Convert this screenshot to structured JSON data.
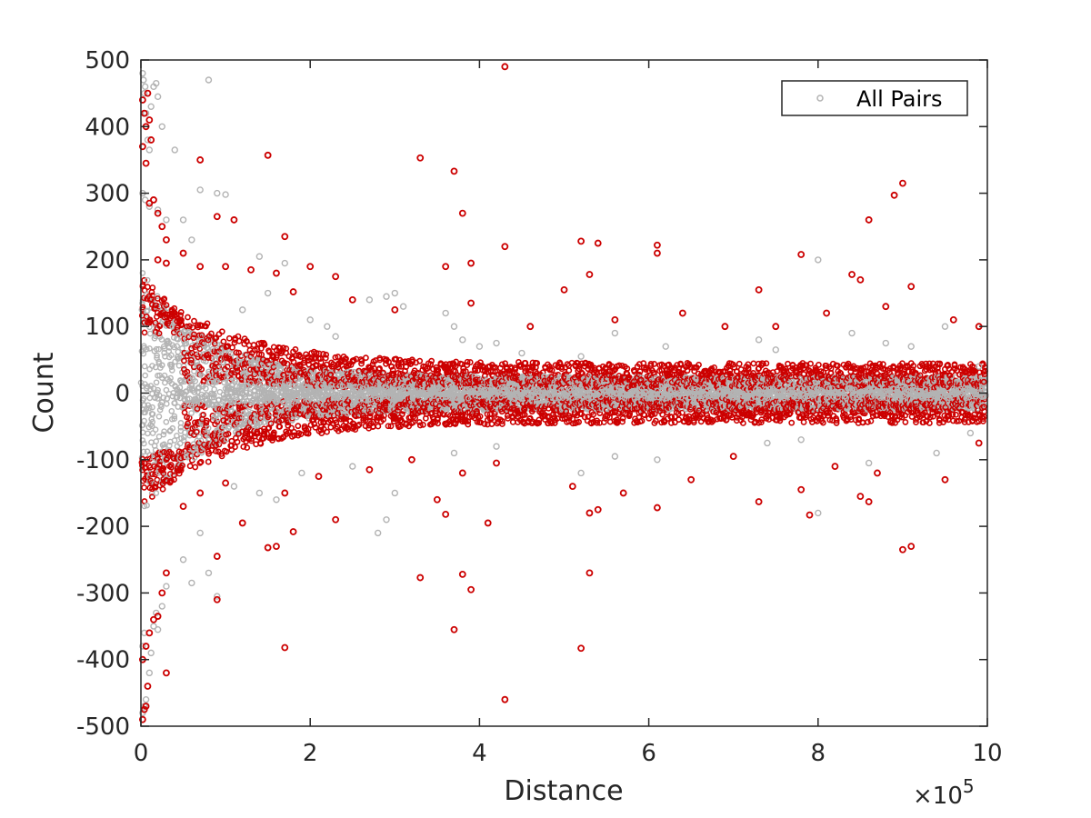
{
  "chart_data": {
    "type": "scatter",
    "xlabel": "Distance",
    "ylabel": "Count",
    "x_multiplier_label": "×10",
    "x_multiplier_exponent": "5",
    "xlim": [
      0,
      10
    ],
    "ylim": [
      -500,
      500
    ],
    "x_ticks": [
      "0",
      "2",
      "4",
      "6",
      "8",
      "10"
    ],
    "y_ticks": [
      "500",
      "400",
      "300",
      "200",
      "100",
      "0",
      "-100",
      "-200",
      "-300",
      "-400",
      "-500"
    ],
    "grid": false,
    "legend": {
      "placement": "top-right",
      "entries": [
        "All Pairs"
      ]
    },
    "colors": {
      "all_pairs": "#b3b3b3",
      "highlighted": "#cc0000",
      "axis": "#262626"
    },
    "series": [
      {
        "name": "All Pairs",
        "points": [
          [
            0.02,
            480
          ],
          [
            0.03,
            470
          ],
          [
            0.05,
            460
          ],
          [
            0.04,
            450
          ],
          [
            0.06,
            420
          ],
          [
            0.08,
            380
          ],
          [
            0.1,
            365
          ],
          [
            0.12,
            430
          ],
          [
            0.15,
            460
          ],
          [
            0.18,
            465
          ],
          [
            0.2,
            445
          ],
          [
            0.25,
            400
          ],
          [
            0.4,
            365
          ],
          [
            0.8,
            470
          ],
          [
            0.7,
            305
          ],
          [
            0.9,
            300
          ],
          [
            1.0,
            298
          ],
          [
            0.02,
            300
          ],
          [
            0.05,
            290
          ],
          [
            0.1,
            280
          ],
          [
            0.2,
            275
          ],
          [
            0.3,
            260
          ],
          [
            0.5,
            260
          ],
          [
            0.6,
            230
          ],
          [
            0.02,
            -480
          ],
          [
            0.04,
            -470
          ],
          [
            0.06,
            -460
          ],
          [
            0.08,
            -440
          ],
          [
            0.1,
            -420
          ],
          [
            0.02,
            -380
          ],
          [
            0.04,
            -360
          ],
          [
            0.12,
            -390
          ],
          [
            0.15,
            -350
          ],
          [
            0.18,
            -330
          ],
          [
            0.2,
            -355
          ],
          [
            0.25,
            -320
          ],
          [
            0.3,
            -290
          ],
          [
            0.6,
            -285
          ],
          [
            0.8,
            -270
          ],
          [
            0.9,
            -305
          ],
          [
            0.5,
            -250
          ],
          [
            0.7,
            -210
          ],
          [
            2.7,
            140
          ],
          [
            2.9,
            145
          ],
          [
            3.0,
            150
          ],
          [
            3.1,
            130
          ],
          [
            2.8,
            -210
          ],
          [
            2.9,
            -190
          ],
          [
            3.0,
            -150
          ],
          [
            3.6,
            120
          ],
          [
            3.7,
            100
          ],
          [
            3.8,
            80
          ],
          [
            4.0,
            70
          ],
          [
            4.2,
            75
          ],
          [
            4.5,
            60
          ],
          [
            5.2,
            55
          ],
          [
            5.6,
            90
          ],
          [
            6.2,
            70
          ],
          [
            7.3,
            80
          ],
          [
            7.5,
            65
          ],
          [
            8.0,
            200
          ],
          [
            8.4,
            90
          ],
          [
            8.8,
            75
          ],
          [
            9.1,
            70
          ],
          [
            9.5,
            100
          ],
          [
            9.9,
            40
          ],
          [
            3.2,
            -100
          ],
          [
            3.7,
            -90
          ],
          [
            4.2,
            -80
          ],
          [
            5.2,
            -120
          ],
          [
            5.6,
            -95
          ],
          [
            6.1,
            -100
          ],
          [
            7.4,
            -75
          ],
          [
            7.8,
            -70
          ],
          [
            8.0,
            -180
          ],
          [
            8.6,
            -105
          ],
          [
            9.4,
            -90
          ],
          [
            9.8,
            -60
          ],
          [
            1.5,
            150
          ],
          [
            1.7,
            195
          ],
          [
            1.4,
            205
          ],
          [
            1.4,
            -150
          ],
          [
            1.6,
            -160
          ],
          [
            1.9,
            -120
          ],
          [
            2.2,
            100
          ],
          [
            2.5,
            -110
          ],
          [
            2.0,
            110
          ],
          [
            2.3,
            85
          ],
          [
            1.2,
            125
          ],
          [
            1.1,
            -140
          ]
        ]
      },
      {
        "name": "",
        "points": [
          [
            0.02,
            440
          ],
          [
            0.04,
            420
          ],
          [
            0.06,
            400
          ],
          [
            0.08,
            450
          ],
          [
            0.1,
            410
          ],
          [
            0.12,
            380
          ],
          [
            0.02,
            370
          ],
          [
            0.06,
            345
          ],
          [
            0.1,
            285
          ],
          [
            0.15,
            290
          ],
          [
            0.2,
            270
          ],
          [
            0.25,
            250
          ],
          [
            0.3,
            230
          ],
          [
            0.7,
            350
          ],
          [
            1.5,
            357
          ],
          [
            3.3,
            353
          ],
          [
            3.7,
            333
          ],
          [
            3.8,
            270
          ],
          [
            4.3,
            490
          ],
          [
            9.0,
            315
          ],
          [
            8.9,
            297
          ],
          [
            8.6,
            260
          ],
          [
            0.9,
            265
          ],
          [
            1.1,
            260
          ],
          [
            1.7,
            235
          ],
          [
            0.2,
            200
          ],
          [
            0.3,
            195
          ],
          [
            0.5,
            210
          ],
          [
            0.7,
            190
          ],
          [
            1.0,
            190
          ],
          [
            1.3,
            185
          ],
          [
            1.6,
            180
          ],
          [
            2.0,
            190
          ],
          [
            2.3,
            175
          ],
          [
            3.6,
            190
          ],
          [
            3.9,
            195
          ],
          [
            4.3,
            220
          ],
          [
            5.2,
            228
          ],
          [
            5.4,
            225
          ],
          [
            5.3,
            178
          ],
          [
            6.1,
            222
          ],
          [
            6.1,
            210
          ],
          [
            7.8,
            208
          ],
          [
            8.4,
            178
          ],
          [
            8.5,
            170
          ],
          [
            9.1,
            160
          ],
          [
            7.3,
            155
          ],
          [
            5.0,
            155
          ],
          [
            1.8,
            152
          ],
          [
            0.02,
            -490
          ],
          [
            0.04,
            -475
          ],
          [
            0.06,
            -470
          ],
          [
            0.08,
            -440
          ],
          [
            0.02,
            -400
          ],
          [
            0.06,
            -380
          ],
          [
            0.1,
            -360
          ],
          [
            0.15,
            -340
          ],
          [
            0.2,
            -335
          ],
          [
            0.25,
            -300
          ],
          [
            0.3,
            -420
          ],
          [
            0.3,
            -270
          ],
          [
            0.9,
            -310
          ],
          [
            1.7,
            -382
          ],
          [
            3.7,
            -355
          ],
          [
            4.3,
            -460
          ],
          [
            5.2,
            -383
          ],
          [
            3.3,
            -277
          ],
          [
            3.8,
            -272
          ],
          [
            3.9,
            -295
          ],
          [
            5.3,
            -270
          ],
          [
            1.5,
            -232
          ],
          [
            1.6,
            -230
          ],
          [
            1.8,
            -208
          ],
          [
            0.9,
            -245
          ],
          [
            1.2,
            -195
          ],
          [
            2.3,
            -190
          ],
          [
            4.1,
            -195
          ],
          [
            3.5,
            -160
          ],
          [
            3.6,
            -182
          ],
          [
            5.3,
            -180
          ],
          [
            5.4,
            -175
          ],
          [
            6.1,
            -172
          ],
          [
            7.3,
            -163
          ],
          [
            7.8,
            -145
          ],
          [
            7.9,
            -183
          ],
          [
            8.5,
            -155
          ],
          [
            8.6,
            -163
          ],
          [
            9.0,
            -235
          ],
          [
            9.1,
            -230
          ],
          [
            0.5,
            -170
          ],
          [
            0.7,
            -150
          ],
          [
            1.0,
            -135
          ],
          [
            1.7,
            -150
          ],
          [
            2.1,
            -125
          ],
          [
            2.7,
            -115
          ],
          [
            3.2,
            -100
          ],
          [
            3.8,
            -120
          ],
          [
            4.2,
            -105
          ],
          [
            5.1,
            -140
          ],
          [
            5.7,
            -150
          ],
          [
            6.5,
            -130
          ],
          [
            7.0,
            -95
          ],
          [
            8.2,
            -110
          ],
          [
            8.7,
            -120
          ],
          [
            9.5,
            -130
          ],
          [
            9.9,
            -75
          ],
          [
            2.5,
            140
          ],
          [
            3.0,
            125
          ],
          [
            3.9,
            135
          ],
          [
            4.6,
            100
          ],
          [
            5.6,
            110
          ],
          [
            6.4,
            120
          ],
          [
            6.9,
            100
          ],
          [
            7.5,
            100
          ],
          [
            8.1,
            120
          ],
          [
            8.8,
            130
          ],
          [
            9.6,
            110
          ],
          [
            9.9,
            100
          ]
        ]
      }
    ]
  }
}
